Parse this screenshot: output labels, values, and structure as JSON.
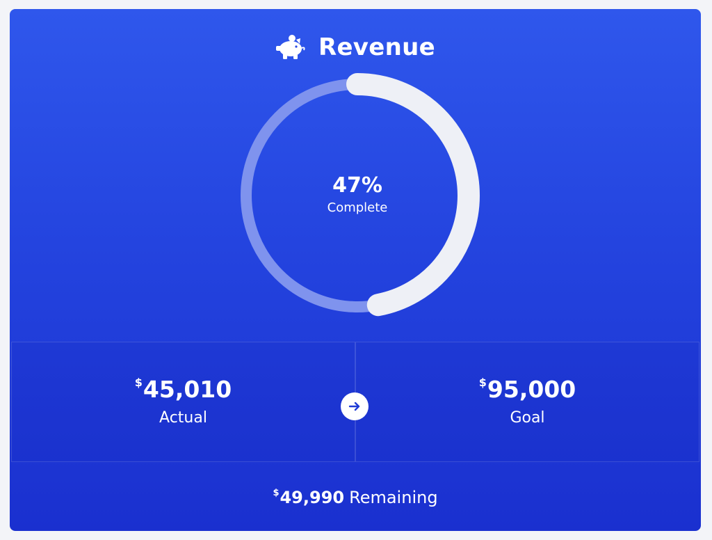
{
  "header": {
    "icon": "piggy-bank-icon",
    "title": "Revenue"
  },
  "progress": {
    "percent": 47,
    "percent_text": "47%",
    "label": "Complete",
    "track_color": "#7f93ee",
    "fill_color": "#eef0f6"
  },
  "actual": {
    "currency": "$",
    "value": "45,010",
    "label": "Actual"
  },
  "goal": {
    "currency": "$",
    "value": "95,000",
    "label": "Goal"
  },
  "arrow": {
    "icon": "arrow-right-icon"
  },
  "remaining": {
    "currency": "$",
    "value": "49,990",
    "label": "Remaining"
  },
  "colors": {
    "card_top": "#2f57ec",
    "card_bottom": "#1a30cf",
    "text": "#ffffff"
  }
}
